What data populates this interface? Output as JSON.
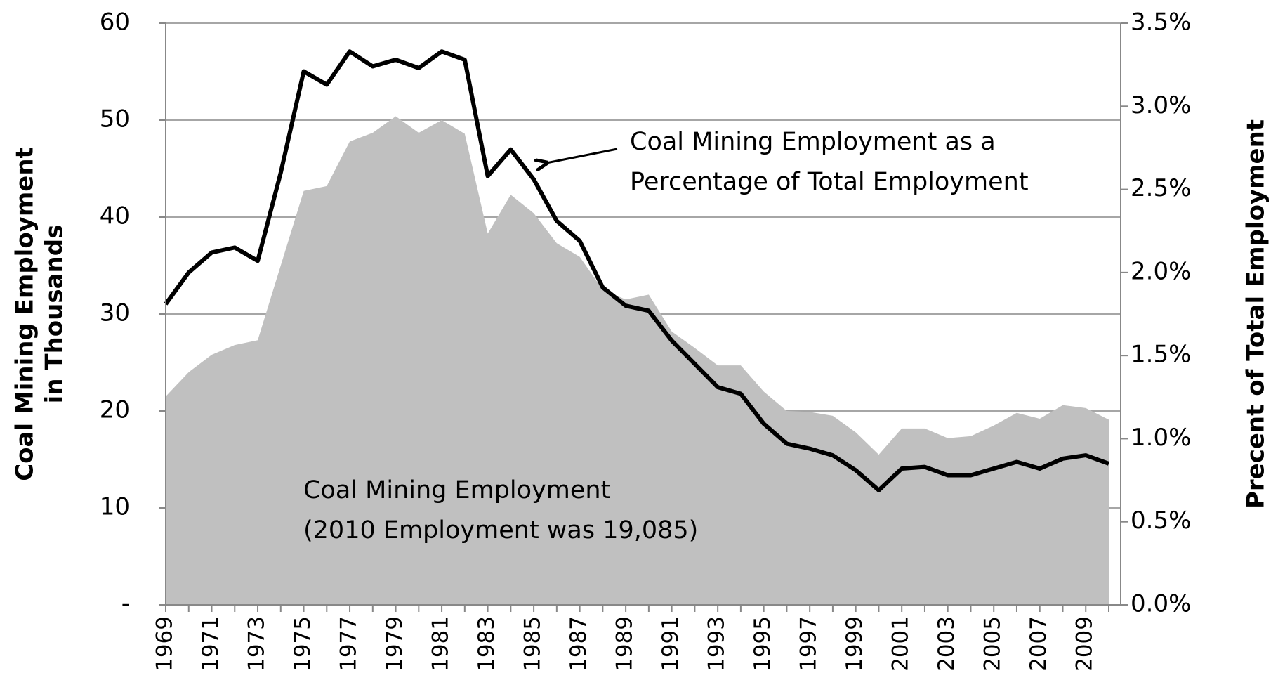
{
  "chart_data": {
    "type": "combo",
    "categories": [
      "1969",
      null,
      "1971",
      null,
      "1973",
      null,
      "1975",
      null,
      "1977",
      null,
      "1979",
      null,
      "1981",
      null,
      "1983",
      null,
      "1985",
      null,
      "1987",
      null,
      "1989",
      null,
      "1991",
      null,
      "1993",
      null,
      "1995",
      null,
      "1997",
      null,
      "1999",
      null,
      "2001",
      null,
      "2003",
      null,
      "2005",
      null,
      "2007",
      null,
      "2009",
      null
    ],
    "series": [
      {
        "type": "area",
        "color": "#c0c0c0",
        "values": [
          21.5,
          24,
          25.8,
          26.8,
          27.3,
          35,
          42.7,
          43.2,
          47.8,
          48.7,
          50.4,
          48.7,
          50,
          48.6,
          38.3,
          42.3,
          40.4,
          37.3,
          35.9,
          32.5,
          31.5,
          32,
          28.2,
          26.5,
          24.7,
          24.7,
          22,
          20,
          19.9,
          19.5,
          17.8,
          15.5,
          18.2,
          18.2,
          17.2,
          17.4,
          18.5,
          19.8,
          19.2,
          20.6,
          20.3,
          19.1
        ]
      },
      {
        "type": "line",
        "color": "#000000",
        "axis": "y2",
        "values": [
          1.81,
          2.0,
          2.12,
          2.15,
          2.07,
          2.6,
          3.21,
          3.13,
          3.33,
          3.24,
          3.28,
          3.23,
          3.33,
          3.28,
          2.58,
          2.74,
          2.56,
          2.31,
          2.19,
          1.91,
          1.8,
          1.77,
          1.59,
          1.45,
          1.31,
          1.27,
          1.09,
          0.97,
          0.94,
          0.9,
          0.81,
          0.69,
          0.82,
          0.83,
          0.78,
          0.78,
          0.82,
          0.86,
          0.82,
          0.88,
          0.9,
          0.85
        ]
      }
    ],
    "ylim": [
      0,
      60
    ],
    "yticks": [
      {
        "value": 0,
        "label": "-"
      },
      10,
      20,
      30,
      40,
      50,
      60
    ],
    "y2lim": [
      0,
      3.5
    ],
    "y2ticks": [
      {
        "value": 0,
        "label": "0.0%"
      },
      {
        "value": 0.5,
        "label": "0.5%"
      },
      {
        "value": 1,
        "label": "1.0%"
      },
      {
        "value": 1.5,
        "label": "1.5%"
      },
      {
        "value": 2,
        "label": "2.0%"
      },
      {
        "value": 2.5,
        "label": "2.5%"
      },
      {
        "value": 3,
        "label": "3.0%"
      },
      {
        "value": 3.5,
        "label": "3.5%"
      }
    ],
    "ylabel": [
      "Coal Mining Employment",
      "in Thousands"
    ],
    "y2label": "Precent of Total Employment",
    "annotations": [
      [
        "Coal Mining Employment as a",
        "Percentage of Total Employment"
      ],
      [
        "Coal Mining Employment",
        "(2010 Employment was 19,085)"
      ]
    ],
    "grid": true
  }
}
